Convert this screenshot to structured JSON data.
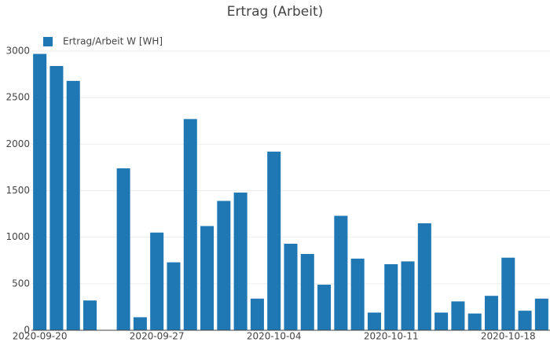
{
  "chart_data": {
    "type": "bar",
    "title": "Ertrag (Arbeit)",
    "x": [
      "2020-09-20",
      "2020-09-21",
      "2020-09-22",
      "2020-09-23",
      "2020-09-24",
      "2020-09-25",
      "2020-09-26",
      "2020-09-27",
      "2020-09-28",
      "2020-09-29",
      "2020-09-30",
      "2020-10-01",
      "2020-10-02",
      "2020-10-03",
      "2020-10-04",
      "2020-10-05",
      "2020-10-06",
      "2020-10-07",
      "2020-10-08",
      "2020-10-09",
      "2020-10-10",
      "2020-10-11",
      "2020-10-12",
      "2020-10-13",
      "2020-10-14",
      "2020-10-15",
      "2020-10-16",
      "2020-10-17",
      "2020-10-18",
      "2020-10-19",
      "2020-10-20"
    ],
    "series": [
      {
        "name": "Ertrag/Arbeit W [WH]",
        "color": "#1f77b4",
        "values": [
          2970,
          2840,
          2680,
          320,
          null,
          1740,
          140,
          1050,
          730,
          2270,
          1120,
          1390,
          1480,
          340,
          1920,
          930,
          820,
          490,
          1230,
          770,
          190,
          710,
          740,
          1150,
          190,
          310,
          180,
          370,
          780,
          210,
          340
        ]
      }
    ],
    "xticks": [
      "2020-09-20",
      "2020-09-27",
      "2020-10-04",
      "2020-10-11",
      "2020-10-18"
    ],
    "ylim": [
      0,
      3000
    ],
    "yticks": [
      0,
      500,
      1000,
      1500,
      2000,
      2500,
      3000
    ],
    "grid": true,
    "legend": "top-left"
  }
}
